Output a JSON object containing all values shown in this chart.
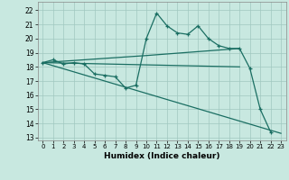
{
  "xlabel": "Humidex (Indice chaleur)",
  "xlim": [
    -0.5,
    23.5
  ],
  "ylim": [
    12.8,
    22.6
  ],
  "yticks": [
    13,
    14,
    15,
    16,
    17,
    18,
    19,
    20,
    21,
    22
  ],
  "xticks": [
    0,
    1,
    2,
    3,
    4,
    5,
    6,
    7,
    8,
    9,
    10,
    11,
    12,
    13,
    14,
    15,
    16,
    17,
    18,
    19,
    20,
    21,
    22,
    23
  ],
  "bg_color": "#c8e8e0",
  "grid_color": "#a0c8c0",
  "line_color": "#1a6e62",
  "line1_x": [
    0,
    1,
    2,
    3,
    4,
    5,
    6,
    7,
    8,
    9,
    10,
    11,
    12,
    13,
    14,
    15,
    16,
    17,
    18,
    19,
    20,
    21,
    22
  ],
  "line1_y": [
    18.3,
    18.5,
    18.2,
    18.3,
    18.2,
    17.5,
    17.4,
    17.3,
    16.5,
    16.7,
    20.0,
    21.8,
    20.9,
    20.4,
    20.3,
    20.9,
    20.0,
    19.5,
    19.3,
    19.3,
    17.9,
    15.0,
    13.4
  ],
  "line2_x": [
    0,
    10,
    19
  ],
  "line2_y": [
    18.3,
    18.8,
    19.3
  ],
  "line3_x": [
    0,
    19
  ],
  "line3_y": [
    18.3,
    18.0
  ],
  "line4_x": [
    0,
    23
  ],
  "line4_y": [
    18.3,
    13.3
  ]
}
